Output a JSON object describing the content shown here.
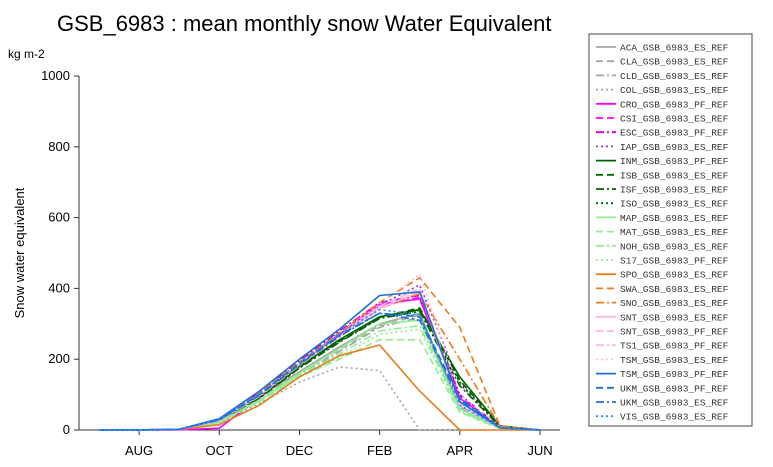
{
  "chart_data": {
    "type": "line",
    "title": "GSB_6983 : mean monthly  snow Water Equivalent",
    "unit_label": "kg m-2",
    "ylabel": "Snow water equivalent",
    "xlabel": "",
    "ylim": [
      0,
      1000
    ],
    "y_ticks": [
      "0",
      "200",
      "400",
      "600",
      "800",
      "1000"
    ],
    "x_tick_labels": [
      "AUG",
      "OCT",
      "DEC",
      "FEB",
      "APR",
      "JUN"
    ],
    "x_tick_months": [
      1,
      3,
      5,
      7,
      9,
      11
    ],
    "grid": false,
    "legend_position": "right",
    "series": [
      {
        "name": "ACA_GSB_6983_ES_REF",
        "color": "#a6a6a6",
        "dash": "solid",
        "values": [
          0,
          0,
          2,
          25,
          95,
          165,
          235,
          300,
          330,
          60,
          5,
          0
        ]
      },
      {
        "name": "CLA_GSB_6983_ES_REF",
        "color": "#a6a6a6",
        "dash": "dash",
        "values": [
          0,
          0,
          2,
          24,
          92,
          160,
          228,
          295,
          325,
          70,
          6,
          0
        ]
      },
      {
        "name": "CLD_GSB_6983_ES_REF",
        "color": "#a6a6a6",
        "dash": "dashdot",
        "values": [
          0,
          0,
          2,
          22,
          88,
          155,
          222,
          290,
          318,
          65,
          5,
          0
        ]
      },
      {
        "name": "COL_GSB_6983_ES_REF",
        "color": "#a6a6a6",
        "dash": "dot",
        "values": [
          0,
          0,
          1,
          18,
          75,
          135,
          178,
          168,
          0,
          0,
          0,
          0
        ]
      },
      {
        "name": "CRO_GSB_6983_PF_REF",
        "color": "#ff00ff",
        "dash": "solid",
        "values": [
          0,
          0,
          0,
          5,
          90,
          185,
          270,
          355,
          370,
          90,
          8,
          0
        ]
      },
      {
        "name": "CSI_GSB_6983_ES_REF",
        "color": "#ff00ff",
        "dash": "dash",
        "values": [
          0,
          0,
          2,
          28,
          100,
          190,
          275,
          350,
          375,
          95,
          8,
          0
        ]
      },
      {
        "name": "ESC_GSB_6983_PF_REF",
        "color": "#cc00cc",
        "dash": "dashdot",
        "values": [
          0,
          0,
          2,
          30,
          105,
          195,
          280,
          360,
          380,
          100,
          8,
          0
        ]
      },
      {
        "name": "IAP_GSB_6983_ES_REF",
        "color": "#9933cc",
        "dash": "dot",
        "values": [
          0,
          0,
          2,
          27,
          98,
          188,
          272,
          352,
          410,
          130,
          10,
          0
        ]
      },
      {
        "name": "INM_GSB_6983_PF_REF",
        "color": "#006400",
        "dash": "solid",
        "values": [
          0,
          0,
          2,
          25,
          95,
          180,
          255,
          320,
          340,
          150,
          12,
          0
        ]
      },
      {
        "name": "ISB_GSB_6983_ES_REF",
        "color": "#006400",
        "dash": "dash",
        "values": [
          0,
          0,
          2,
          24,
          93,
          178,
          252,
          318,
          345,
          140,
          11,
          0
        ]
      },
      {
        "name": "ISF_GSB_6983_ES_REF",
        "color": "#006400",
        "dash": "dashdot",
        "values": [
          0,
          0,
          2,
          23,
          90,
          175,
          248,
          315,
          335,
          125,
          10,
          0
        ]
      },
      {
        "name": "ISO_GSB_6983_ES_REF",
        "color": "#006400",
        "dash": "dot",
        "values": [
          0,
          0,
          2,
          23,
          91,
          176,
          250,
          316,
          338,
          135,
          10,
          0
        ]
      },
      {
        "name": "MAP_GSB_6983_ES_REF",
        "color": "#90ee90",
        "dash": "solid",
        "values": [
          0,
          0,
          2,
          22,
          85,
          160,
          230,
          300,
          310,
          60,
          5,
          0
        ]
      },
      {
        "name": "MAT_GSB_6983_ES_REF",
        "color": "#90ee90",
        "dash": "dash",
        "values": [
          0,
          0,
          2,
          20,
          80,
          150,
          200,
          255,
          255,
          50,
          4,
          0
        ]
      },
      {
        "name": "NOH_GSB_6983_ES_REF",
        "color": "#90ee90",
        "dash": "dashdot",
        "values": [
          0,
          0,
          2,
          21,
          82,
          155,
          215,
          280,
          295,
          55,
          5,
          0
        ]
      },
      {
        "name": "S17_GSB_6983_PF_REF",
        "color": "#90ee90",
        "dash": "dot",
        "values": [
          0,
          0,
          2,
          21,
          83,
          152,
          205,
          270,
          285,
          52,
          4,
          0
        ]
      },
      {
        "name": "SPO_GSB_6983_ES_REF",
        "color": "#e87d1e",
        "dash": "solid",
        "values": [
          0,
          0,
          1,
          15,
          70,
          150,
          210,
          240,
          110,
          0,
          0,
          0
        ]
      },
      {
        "name": "SWA_GSB_6983_ES_REF",
        "color": "#e87d1e",
        "dash": "dash",
        "values": [
          0,
          0,
          2,
          30,
          105,
          192,
          275,
          360,
          430,
          290,
          12,
          0
        ]
      },
      {
        "name": "SNO_GSB_6983_ES_REF",
        "color": "#e87d1e",
        "dash": "dashdot",
        "values": [
          0,
          0,
          2,
          26,
          96,
          182,
          262,
          342,
          385,
          200,
          10,
          0
        ]
      },
      {
        "name": "SNT_GSB_6983_ES_REF",
        "color": "#ffb6e0",
        "dash": "solid",
        "values": [
          0,
          0,
          2,
          27,
          97,
          185,
          265,
          345,
          390,
          70,
          6,
          0
        ]
      },
      {
        "name": "SNT_GSB_6983_PF_REF",
        "color": "#ffb6e0",
        "dash": "dash",
        "values": [
          0,
          0,
          2,
          27,
          98,
          186,
          268,
          350,
          400,
          80,
          7,
          0
        ]
      },
      {
        "name": "TS1_GSB_6983_PF_REF",
        "color": "#ffb6e0",
        "dash": "dashdot",
        "values": [
          0,
          0,
          2,
          26,
          95,
          183,
          262,
          340,
          395,
          75,
          6,
          0
        ]
      },
      {
        "name": "TSM_GSB_6983_ES_REF",
        "color": "#ffb6e0",
        "dash": "dot",
        "values": [
          0,
          0,
          2,
          28,
          99,
          188,
          270,
          355,
          440,
          100,
          8,
          0
        ]
      },
      {
        "name": "TSM_GSB_6983_PF_REF",
        "color": "#1f6fd1",
        "dash": "solid",
        "values": [
          0,
          0,
          2,
          32,
          110,
          200,
          285,
          380,
          390,
          80,
          6,
          0
        ]
      },
      {
        "name": "UKM_GSB_6983_PF_REF",
        "color": "#1f6fd1",
        "dash": "dash",
        "values": [
          0,
          0,
          2,
          29,
          100,
          188,
          268,
          330,
          320,
          90,
          7,
          0
        ]
      },
      {
        "name": "UKM_GSB_6983_ES_REF",
        "color": "#1f6fd1",
        "dash": "dashdot",
        "values": [
          0,
          0,
          2,
          28,
          98,
          185,
          265,
          330,
          310,
          85,
          7,
          0
        ]
      },
      {
        "name": "VIS_GSB_6983_ES_REF",
        "color": "#1e90ff",
        "dash": "dot",
        "values": [
          0,
          0,
          2,
          30,
          102,
          190,
          272,
          340,
          325,
          70,
          6,
          0
        ]
      }
    ]
  }
}
